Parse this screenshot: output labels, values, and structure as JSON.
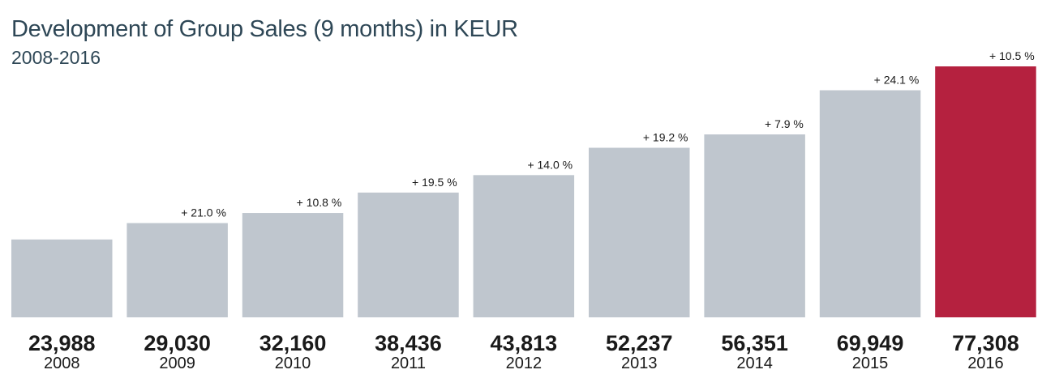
{
  "chart_data": {
    "type": "bar",
    "title": "Development of Group Sales (9 months) in KEUR",
    "subtitle": "2008-2016",
    "xlabel": "",
    "ylabel": "",
    "ylim": [
      0,
      77308
    ],
    "grid": false,
    "categories": [
      "2008",
      "2009",
      "2010",
      "2011",
      "2012",
      "2013",
      "2014",
      "2015",
      "2016"
    ],
    "values": [
      23988,
      29030,
      32160,
      38436,
      43813,
      52237,
      56351,
      69949,
      77308
    ],
    "value_labels": [
      "23,988",
      "29,030",
      "32,160",
      "38,436",
      "43,813",
      "52,237",
      "56,351",
      "69,949",
      "77,308"
    ],
    "growth_labels": [
      "",
      "+ 21.0 %",
      "+ 10.8 %",
      "+ 19.5 %",
      "+ 14.0 %",
      "+ 19.2 %",
      "+ 7.9 %",
      "+ 24.1 %",
      "+ 10.5 %"
    ],
    "colors": {
      "default": "#bfc6ce",
      "highlight": "#b5213f"
    },
    "highlight_index": 8
  }
}
